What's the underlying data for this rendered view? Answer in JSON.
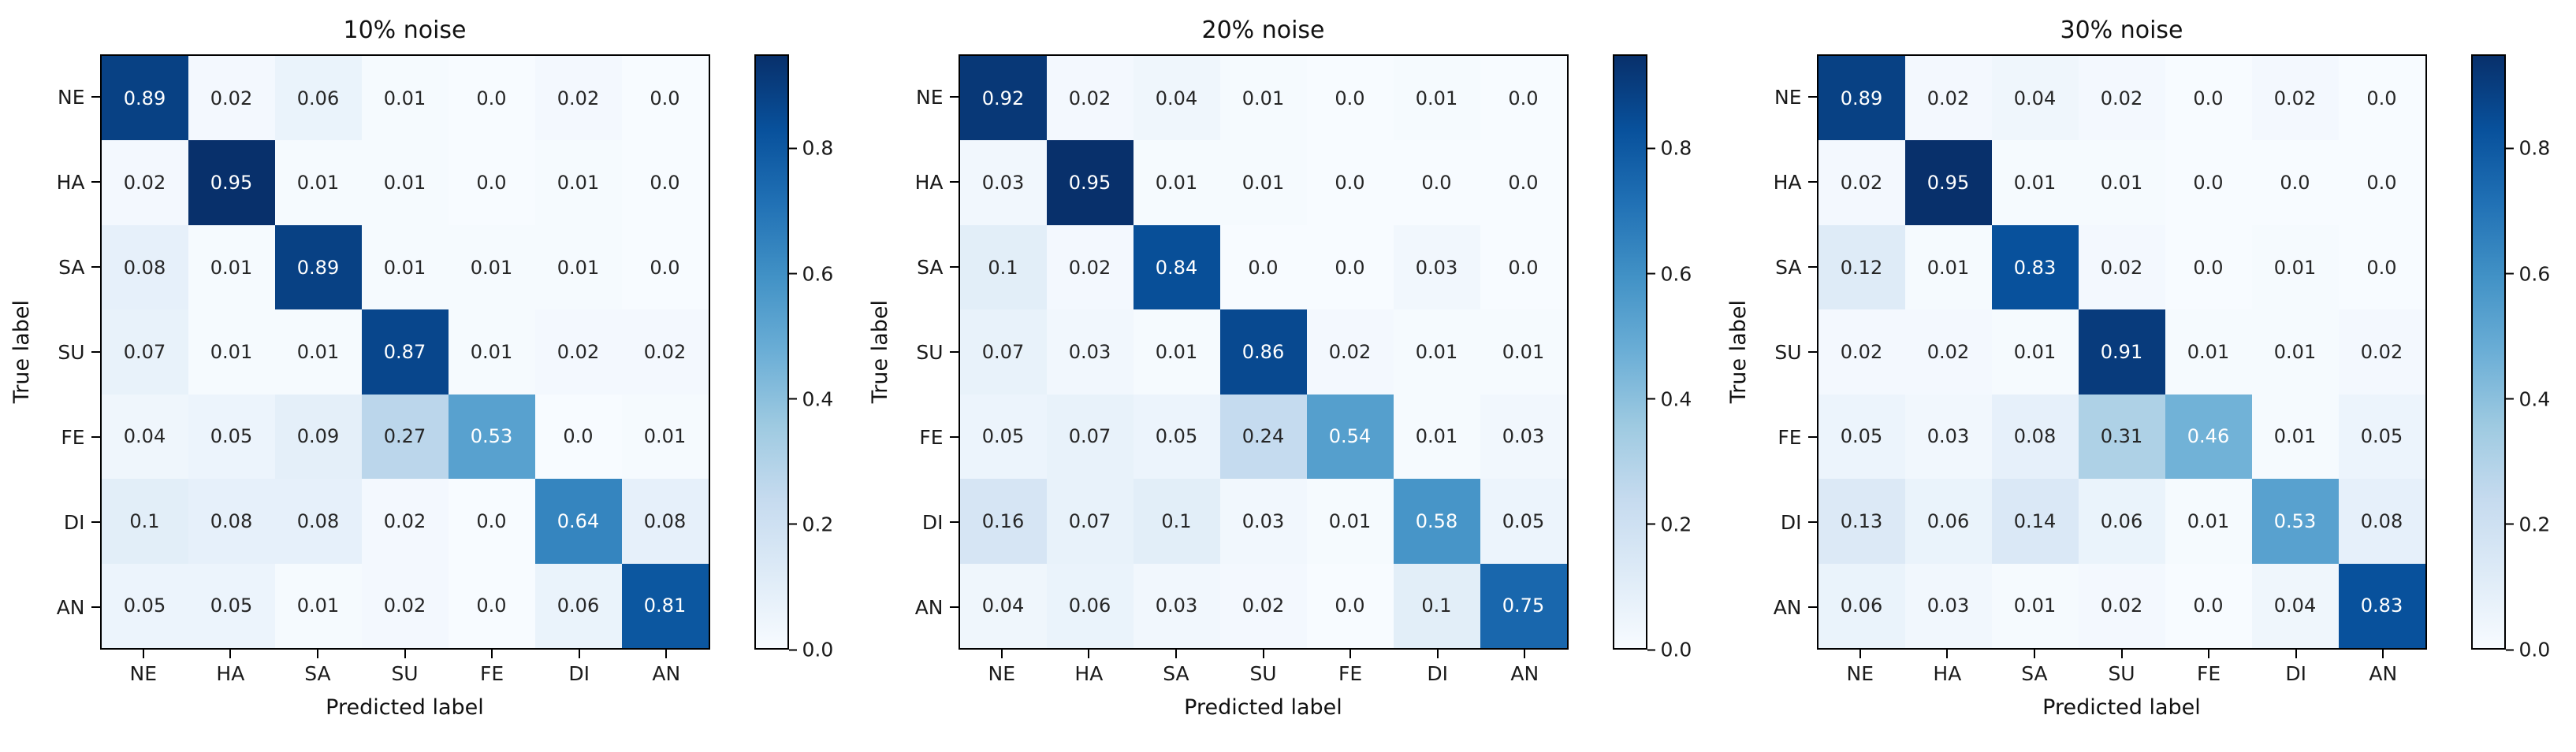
{
  "figure": {
    "background": "#ffffff",
    "colormap": {
      "name": "Blues",
      "anchors": [
        "#f7fbff",
        "#deebf7",
        "#c6dbef",
        "#9ecae1",
        "#6baed6",
        "#4292c6",
        "#2171b5",
        "#08519c",
        "#08306b"
      ]
    },
    "annotation_text_dark": "#262626",
    "annotation_text_light": "#ffffff"
  },
  "chart_data": [
    {
      "type": "heatmap",
      "title": "10% noise",
      "xlabel": "Predicted label",
      "ylabel": "True label",
      "x_labels": [
        "NE",
        "HA",
        "SA",
        "SU",
        "FE",
        "DI",
        "AN"
      ],
      "y_labels": [
        "NE",
        "HA",
        "SA",
        "SU",
        "FE",
        "DI",
        "AN"
      ],
      "vmin": 0.0,
      "vmax": 0.95,
      "colorbar_ticks": [
        0.8,
        0.6,
        0.4,
        0.2,
        0.0
      ],
      "matrix": [
        [
          0.89,
          0.02,
          0.06,
          0.01,
          0.0,
          0.02,
          0.0
        ],
        [
          0.02,
          0.95,
          0.01,
          0.01,
          0.0,
          0.01,
          0.0
        ],
        [
          0.08,
          0.01,
          0.89,
          0.01,
          0.01,
          0.01,
          0.0
        ],
        [
          0.07,
          0.01,
          0.01,
          0.87,
          0.01,
          0.02,
          0.02
        ],
        [
          0.04,
          0.05,
          0.09,
          0.27,
          0.53,
          0.0,
          0.01
        ],
        [
          0.1,
          0.08,
          0.08,
          0.02,
          0.0,
          0.64,
          0.08
        ],
        [
          0.05,
          0.05,
          0.01,
          0.02,
          0.0,
          0.06,
          0.81
        ]
      ]
    },
    {
      "type": "heatmap",
      "title": "20% noise",
      "xlabel": "Predicted label",
      "ylabel": "True label",
      "x_labels": [
        "NE",
        "HA",
        "SA",
        "SU",
        "FE",
        "DI",
        "AN"
      ],
      "y_labels": [
        "NE",
        "HA",
        "SA",
        "SU",
        "FE",
        "DI",
        "AN"
      ],
      "vmin": 0.0,
      "vmax": 0.95,
      "colorbar_ticks": [
        0.8,
        0.6,
        0.4,
        0.2,
        0.0
      ],
      "matrix": [
        [
          0.92,
          0.02,
          0.04,
          0.01,
          0.0,
          0.01,
          0.0
        ],
        [
          0.03,
          0.95,
          0.01,
          0.01,
          0.0,
          0.0,
          0.0
        ],
        [
          0.1,
          0.02,
          0.84,
          0.0,
          0.0,
          0.03,
          0.0
        ],
        [
          0.07,
          0.03,
          0.01,
          0.86,
          0.02,
          0.01,
          0.01
        ],
        [
          0.05,
          0.07,
          0.05,
          0.24,
          0.54,
          0.01,
          0.03
        ],
        [
          0.16,
          0.07,
          0.1,
          0.03,
          0.01,
          0.58,
          0.05
        ],
        [
          0.04,
          0.06,
          0.03,
          0.02,
          0.0,
          0.1,
          0.75
        ]
      ]
    },
    {
      "type": "heatmap",
      "title": "30% noise",
      "xlabel": "Predicted label",
      "ylabel": "True label",
      "x_labels": [
        "NE",
        "HA",
        "SA",
        "SU",
        "FE",
        "DI",
        "AN"
      ],
      "y_labels": [
        "NE",
        "HA",
        "SA",
        "SU",
        "FE",
        "DI",
        "AN"
      ],
      "vmin": 0.0,
      "vmax": 0.95,
      "colorbar_ticks": [
        0.8,
        0.6,
        0.4,
        0.2,
        0.0
      ],
      "matrix": [
        [
          0.89,
          0.02,
          0.04,
          0.02,
          0.0,
          0.02,
          0.0
        ],
        [
          0.02,
          0.95,
          0.01,
          0.01,
          0.0,
          0.0,
          0.0
        ],
        [
          0.12,
          0.01,
          0.83,
          0.02,
          0.0,
          0.01,
          0.0
        ],
        [
          0.02,
          0.02,
          0.01,
          0.91,
          0.01,
          0.01,
          0.02
        ],
        [
          0.05,
          0.03,
          0.08,
          0.31,
          0.46,
          0.01,
          0.05
        ],
        [
          0.13,
          0.06,
          0.14,
          0.06,
          0.01,
          0.53,
          0.08
        ],
        [
          0.06,
          0.03,
          0.01,
          0.02,
          0.0,
          0.04,
          0.83
        ]
      ]
    }
  ]
}
